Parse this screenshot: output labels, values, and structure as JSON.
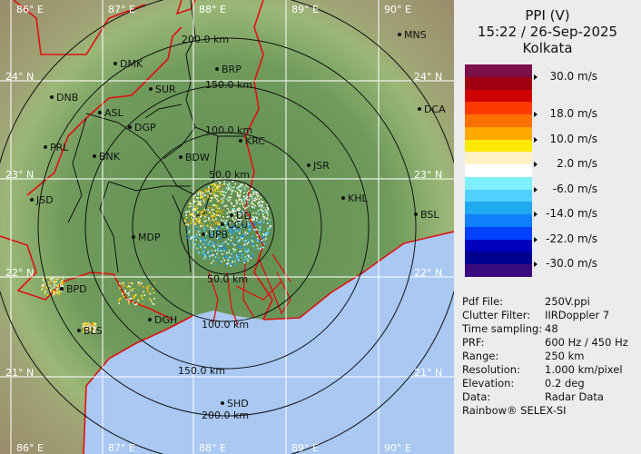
{
  "header": {
    "product": "PPI (V)",
    "datetime": "15:22 / 26-Sep-2025",
    "station": "Kolkata"
  },
  "legend": {
    "unit": "m/s",
    "colors": [
      "#7a0f4a",
      "#a00010",
      "#d00000",
      "#ff3a00",
      "#ff7000",
      "#ffa800",
      "#ffe800",
      "#fff2c4",
      "#ffffff",
      "#80f0ff",
      "#50d0ff",
      "#20a8f0",
      "#1080ff",
      "#0040ff",
      "#0000c0",
      "#000090",
      "#3c0a80"
    ],
    "labels": [
      "30.0 m/s",
      "18.0 m/s",
      "10.0 m/s",
      "2.0 m/s",
      "-6.0 m/s",
      "-14.0 m/s",
      "-22.0 m/s",
      "-30.0 m/s"
    ]
  },
  "info": [
    {
      "key": "Pdf File:",
      "value": "250V.ppi"
    },
    {
      "key": "Clutter Filter:",
      "value": "IIRDoppler 7"
    },
    {
      "key": "Time sampling:",
      "value": "48"
    },
    {
      "key": "PRF:",
      "value": "600 Hz / 450 Hz"
    },
    {
      "key": "Range:",
      "value": "250 km"
    },
    {
      "key": "Resolution:",
      "value": "1.000 km/pixel"
    },
    {
      "key": "Elevation:",
      "value": "0.2 deg"
    },
    {
      "key": "Data:",
      "value": "Radar Data"
    }
  ],
  "footer": "Rainbow® SELEX-SI",
  "map": {
    "longitudes": [
      "86° E",
      "87° E",
      "88° E",
      "89° E",
      "90° E"
    ],
    "latitudes": [
      "24° N",
      "23° N",
      "22° N",
      "21° N"
    ],
    "range_rings_top": [
      "200.0 km",
      "150.0 km",
      "100.0 km",
      "50.0 km"
    ],
    "range_rings_bottom": [
      "50.0 km",
      "100.0 km",
      "150.0 km",
      "200.0 km"
    ],
    "cities": [
      "MNS",
      "DMK",
      "BRP",
      "DNB",
      "SUR",
      "ASL",
      "DGP",
      "DCA",
      "KRC",
      "PRL",
      "BNK",
      "BDW",
      "JSR",
      "KHL",
      "JSD",
      "BSL",
      "DD",
      "CCU",
      "UPB",
      "MDP",
      "BPD",
      "DGH",
      "BLS",
      "SHD"
    ],
    "colors": {
      "land": "#6e9a5a",
      "sea": "#a9c8f2",
      "state_border": "#e01010",
      "district_border": "#111111",
      "grid": "#ffffff"
    }
  }
}
